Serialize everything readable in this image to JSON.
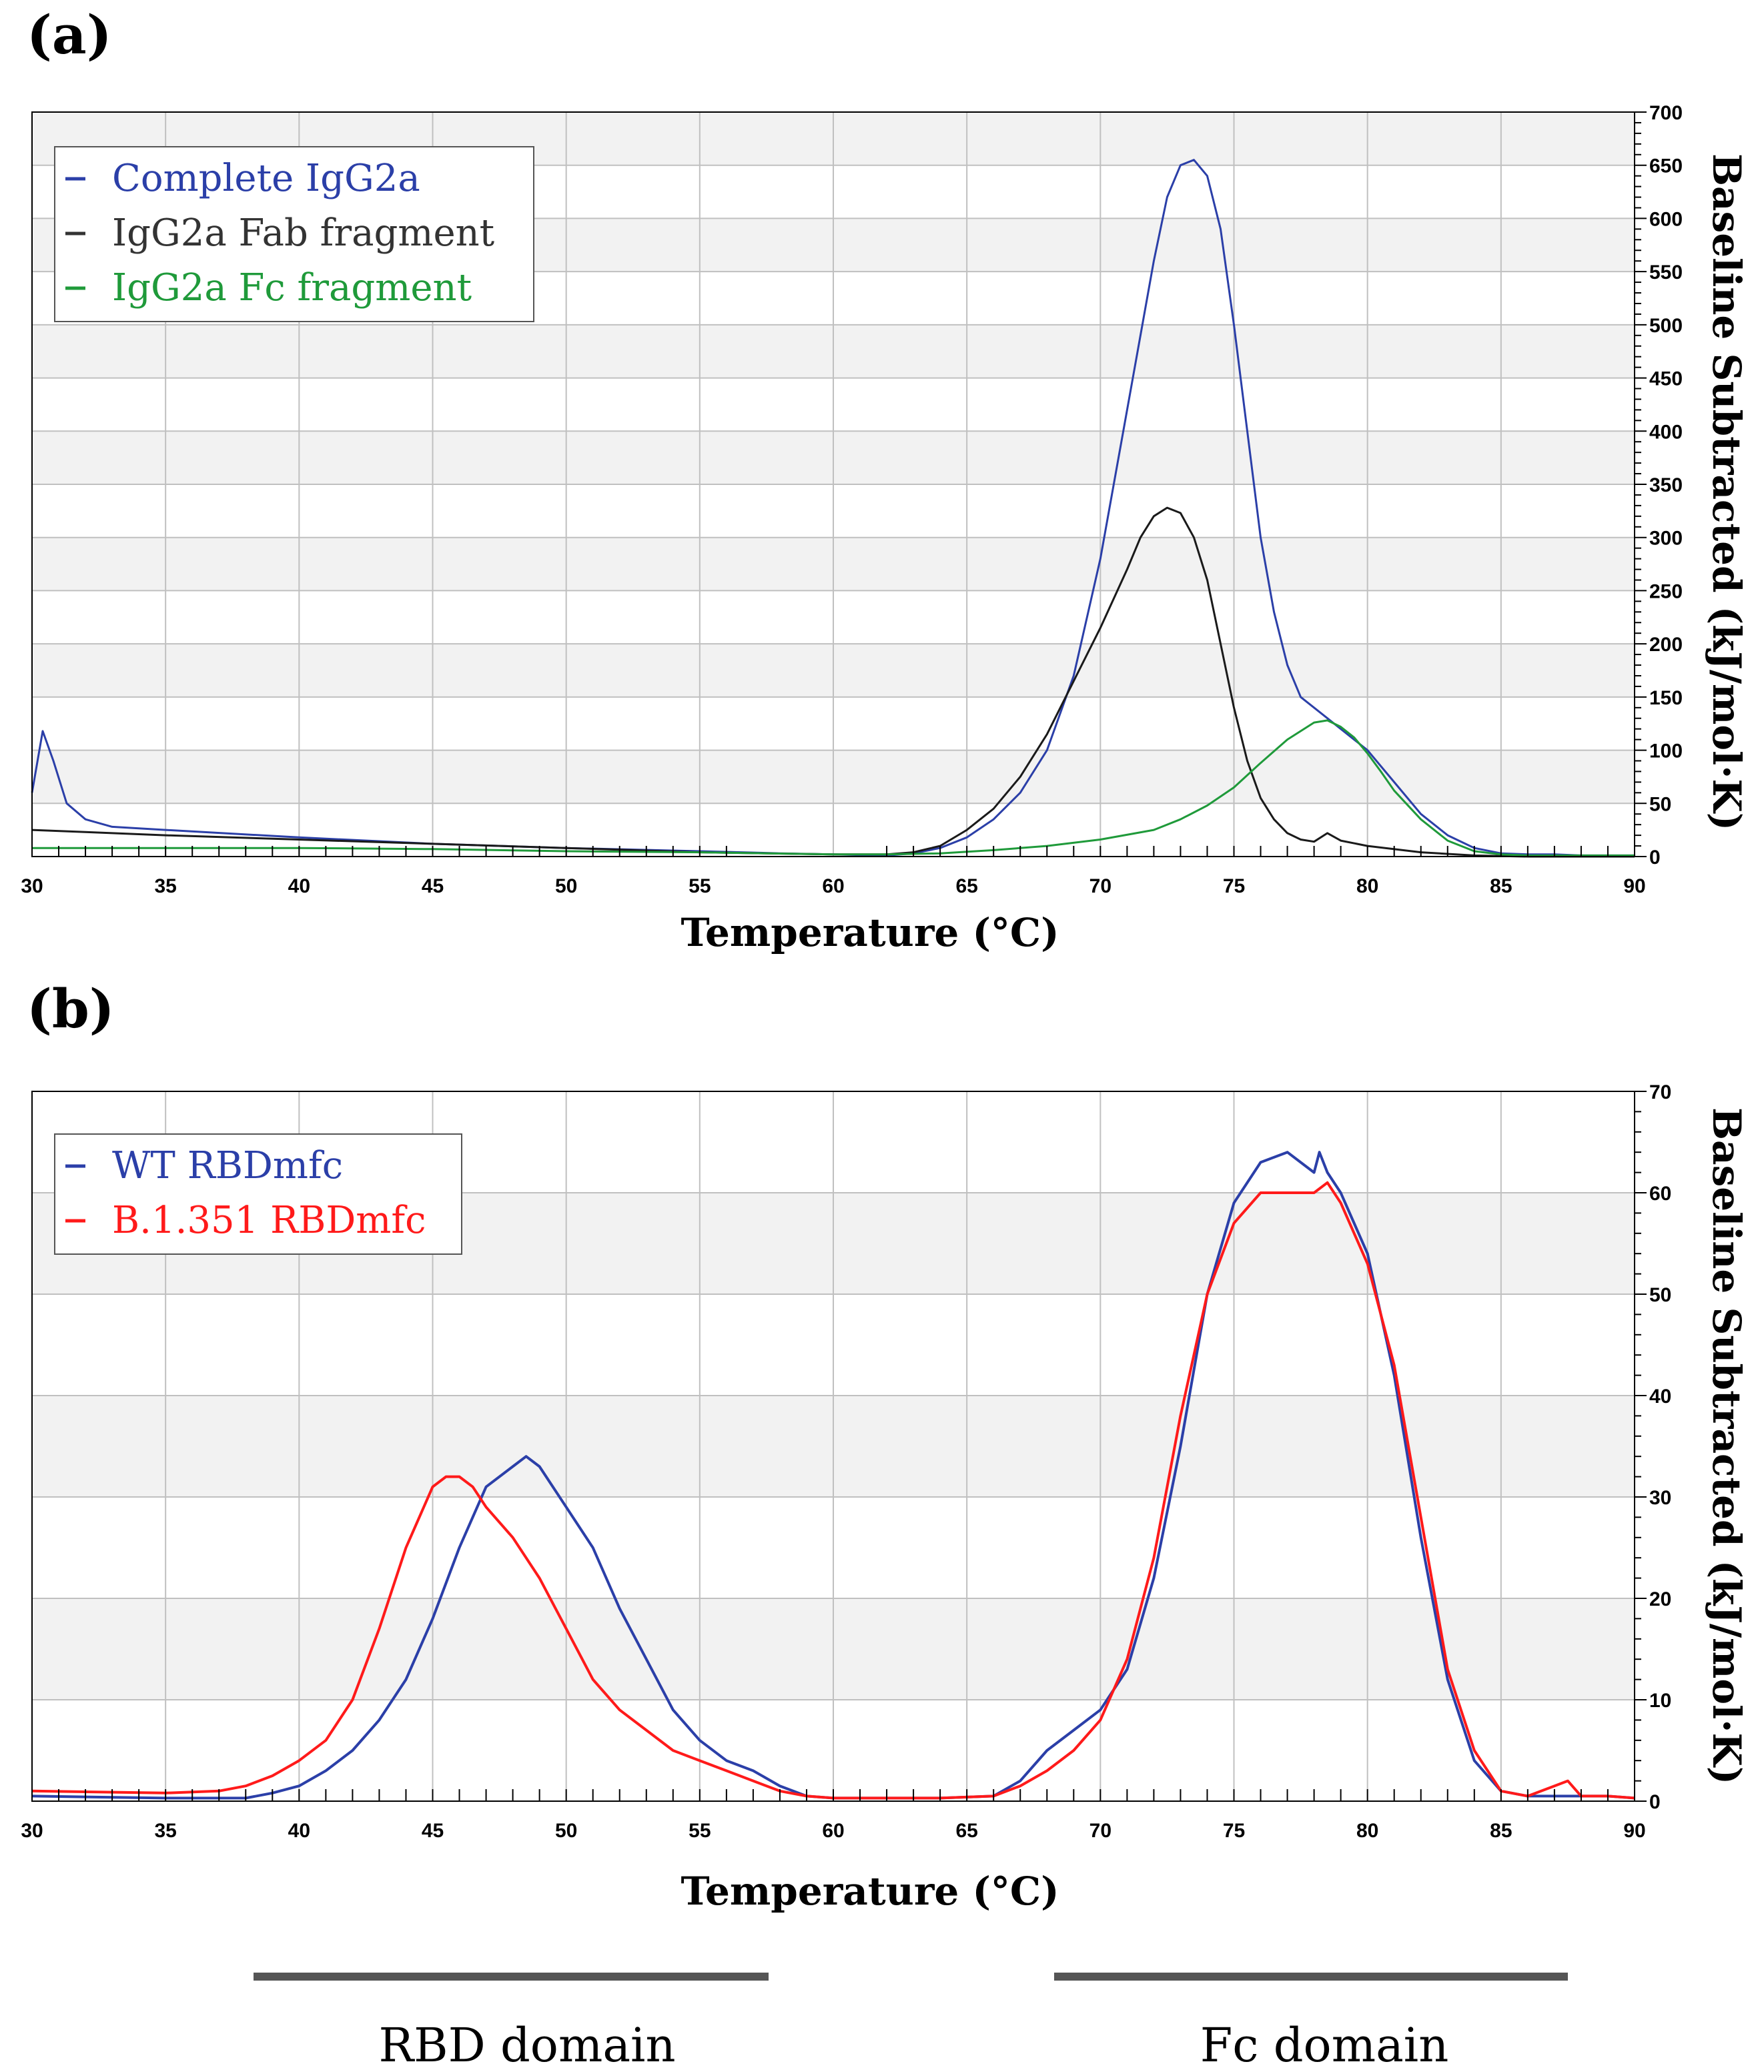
{
  "colors": {
    "blue": "#2b3fa8",
    "black": "#1a1a1a",
    "green": "#1f9a3a",
    "red": "#ff1a1a",
    "band": "#f2f2f2",
    "grid": "#c0c0c0"
  },
  "chart_data": [
    {
      "panel_label": "(a)",
      "type": "line",
      "xlabel": "Temperature (°C)",
      "ylabel": "Baseline Subtracted (kJ/mol·K)",
      "xlim": [
        30,
        90
      ],
      "ylim": [
        0,
        700
      ],
      "xticks": [
        30,
        35,
        40,
        45,
        50,
        55,
        60,
        65,
        70,
        75,
        80,
        85,
        90
      ],
      "yticks": [
        0,
        50,
        100,
        150,
        200,
        250,
        300,
        350,
        400,
        450,
        500,
        550,
        600,
        650,
        700
      ],
      "grid": true,
      "legend_position": "top-left",
      "series": [
        {
          "name": "Complete IgG2a",
          "color": "#2b3fa8",
          "x": [
            30,
            30.4,
            30.8,
            31.3,
            32,
            33,
            35,
            40,
            45,
            50,
            55,
            58,
            60,
            62,
            63,
            64,
            65,
            66,
            67,
            68,
            69,
            70,
            71,
            72,
            72.5,
            73,
            73.5,
            74,
            74.5,
            75,
            75.5,
            76,
            76.5,
            77,
            77.5,
            78,
            78.5,
            79,
            80,
            81,
            82,
            83,
            84,
            85,
            86,
            87,
            88,
            90
          ],
          "y": [
            60,
            118,
            90,
            50,
            35,
            28,
            25,
            18,
            12,
            8,
            5,
            3,
            2,
            1,
            3,
            8,
            18,
            35,
            60,
            100,
            170,
            280,
            420,
            560,
            620,
            650,
            655,
            640,
            590,
            500,
            400,
            300,
            230,
            180,
            150,
            140,
            130,
            120,
            100,
            70,
            40,
            20,
            8,
            3,
            2,
            2,
            1,
            1
          ]
        },
        {
          "name": "IgG2a Fab fragment",
          "color": "#1a1a1a",
          "x": [
            30,
            32,
            35,
            40,
            45,
            50,
            55,
            60,
            62,
            63,
            64,
            65,
            66,
            67,
            68,
            69,
            70,
            71,
            71.5,
            72,
            72.5,
            73,
            73.5,
            74,
            74.5,
            75,
            75.5,
            76,
            76.5,
            77,
            77.5,
            78,
            78.5,
            79,
            80,
            82,
            84,
            86,
            90
          ],
          "y": [
            25,
            23,
            20,
            16,
            12,
            8,
            4,
            2,
            2,
            4,
            10,
            25,
            45,
            75,
            115,
            165,
            215,
            270,
            300,
            320,
            328,
            323,
            300,
            260,
            200,
            140,
            90,
            55,
            35,
            22,
            16,
            14,
            22,
            15,
            10,
            4,
            1,
            0,
            0
          ]
        },
        {
          "name": "IgG2a Fc fragment",
          "color": "#1f9a3a",
          "x": [
            30,
            35,
            40,
            45,
            50,
            55,
            60,
            62,
            64,
            66,
            68,
            70,
            72,
            73,
            74,
            75,
            76,
            77,
            78,
            78.5,
            79,
            79.5,
            80,
            80.5,
            81,
            82,
            83,
            84,
            85,
            86,
            90
          ],
          "y": [
            8,
            8,
            8,
            7,
            5,
            4,
            2,
            2,
            3,
            6,
            10,
            16,
            25,
            35,
            48,
            65,
            88,
            110,
            126,
            128,
            122,
            112,
            97,
            80,
            62,
            35,
            15,
            5,
            2,
            1,
            1
          ]
        }
      ]
    },
    {
      "panel_label": "(b)",
      "type": "line",
      "xlabel": "Temperature (°C)",
      "ylabel": "Baseline Subtracted (kJ/mol·K)",
      "xlim": [
        30,
        90
      ],
      "ylim": [
        0,
        70
      ],
      "xticks": [
        30,
        35,
        40,
        45,
        50,
        55,
        60,
        65,
        70,
        75,
        80,
        85,
        90
      ],
      "yticks": [
        0,
        10,
        20,
        30,
        40,
        50,
        60,
        70
      ],
      "grid": true,
      "legend_position": "top-left",
      "series": [
        {
          "name": "WT RBDmfc",
          "color": "#2b3fa8",
          "x": [
            30,
            35,
            38,
            39,
            40,
            41,
            42,
            43,
            44,
            45,
            46,
            47,
            48,
            48.5,
            49,
            50,
            51,
            52,
            53,
            54,
            55,
            56,
            57,
            58,
            59,
            60,
            62,
            64,
            66,
            67,
            68,
            69,
            70,
            71,
            72,
            73,
            74,
            75,
            76,
            77,
            78,
            78.2,
            78.5,
            79,
            80,
            81,
            82,
            83,
            84,
            85,
            86,
            87,
            88,
            89,
            90
          ],
          "y": [
            0.5,
            0.3,
            0.3,
            0.8,
            1.5,
            3,
            5,
            8,
            12,
            18,
            25,
            31,
            33,
            34,
            33,
            29,
            25,
            19,
            14,
            9,
            6,
            4,
            3,
            1.5,
            0.5,
            0.3,
            0.3,
            0.3,
            0.5,
            2,
            5,
            7,
            9,
            13,
            22,
            35,
            50,
            59,
            63,
            64,
            62,
            64,
            62,
            60,
            54,
            42,
            26,
            12,
            4,
            1,
            0.5,
            0.5,
            0.5,
            0.5,
            0.3
          ]
        },
        {
          "name": "B.1.351 RBDmfc",
          "color": "#ff1a1a",
          "x": [
            30,
            35,
            37,
            38,
            39,
            40,
            41,
            42,
            43,
            44,
            45,
            45.5,
            46,
            46.5,
            47,
            48,
            49,
            50,
            51,
            52,
            53,
            54,
            55,
            56,
            57,
            58,
            59,
            60,
            62,
            64,
            66,
            67,
            68,
            69,
            70,
            71,
            72,
            73,
            74,
            75,
            76,
            77,
            78,
            78.5,
            79,
            80,
            81,
            82,
            83,
            84,
            85,
            86,
            87,
            87.5,
            88,
            89,
            90
          ],
          "y": [
            1,
            0.8,
            1,
            1.5,
            2.5,
            4,
            6,
            10,
            17,
            25,
            31,
            32,
            32,
            31,
            29,
            26,
            22,
            17,
            12,
            9,
            7,
            5,
            4,
            3,
            2,
            1,
            0.5,
            0.3,
            0.3,
            0.3,
            0.5,
            1.5,
            3,
            5,
            8,
            14,
            24,
            38,
            50,
            57,
            60,
            60,
            60,
            61,
            59,
            53,
            43,
            28,
            13,
            5,
            1,
            0.5,
            1.5,
            2,
            0.5,
            0.5,
            0.3
          ]
        }
      ]
    }
  ],
  "domains": [
    {
      "label": "RBD domain"
    },
    {
      "label": "Fc domain"
    }
  ]
}
